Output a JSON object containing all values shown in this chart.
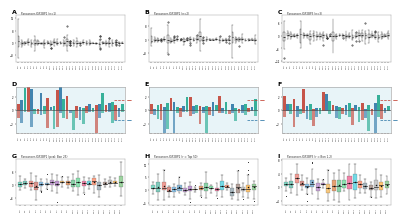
{
  "background_color": "#ffffff",
  "panel_labels": [
    "A",
    "B",
    "C",
    "D",
    "E",
    "F",
    "G",
    "H",
    "I"
  ],
  "subplot_titles_abc": [
    "Pancancer-IGF2BP1 (n=1)",
    "Pancancer-IGF2BP2 (n=2)",
    "Pancancer-IGF2BP3 (n=3)"
  ],
  "subplot_titles_ghi": [
    "Pancancer-IGF2BP1 (pval: Bon 25)",
    "Pancancer-IGF2BP2 (r = Top 50)",
    "Pancancer-IGF2BP3 (r = Bon 1.2)"
  ],
  "n_cats_abc": 33,
  "n_cats_def": 33,
  "n_cats_ghi": 20,
  "def_bg": "#e8f4f8",
  "red": "#c0392b",
  "blue": "#2471a3",
  "teal": "#17a589",
  "colors_ghi": [
    "#1abc9c",
    "#16a085",
    "#e74c3c",
    "#c0392b",
    "#3498db",
    "#2980b9",
    "#9b59b6",
    "#8e44ad",
    "#f39c12",
    "#d35400",
    "#27ae60",
    "#2ecc71",
    "#e91e63",
    "#00bcd4",
    "#ff5722",
    "#607d8b",
    "#795548",
    "#9e9e9e",
    "#ff9800",
    "#4caf50"
  ],
  "box_face": "#e8e8e8",
  "box_edge": "#444444",
  "whisker_color": "#444444"
}
